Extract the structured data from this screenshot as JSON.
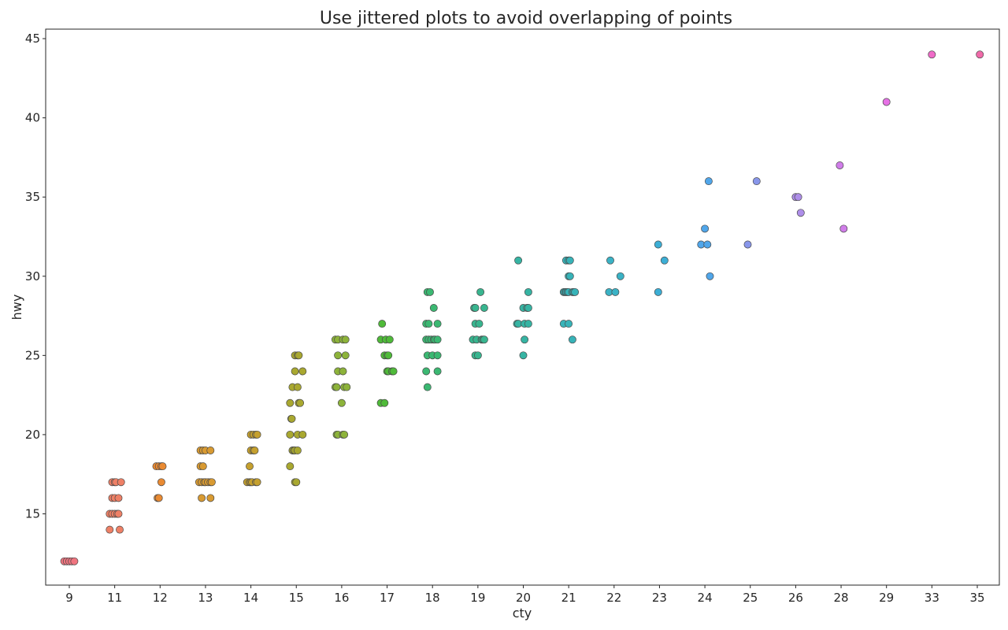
{
  "chart_data": {
    "type": "scatter",
    "title": "Use jittered plots to avoid overlapping of points",
    "xlabel": "cty",
    "ylabel": "hwy",
    "x_categories": [
      "9",
      "11",
      "12",
      "13",
      "14",
      "15",
      "16",
      "17",
      "18",
      "19",
      "20",
      "21",
      "22",
      "23",
      "24",
      "25",
      "26",
      "28",
      "29",
      "33",
      "35"
    ],
    "category_colors": {
      "9": "#f0747f",
      "11": "#ee8066",
      "12": "#e98a32",
      "13": "#d89a32",
      "14": "#c5a02e",
      "15": "#a9a830",
      "16": "#8db33a",
      "17": "#4fba39",
      "18": "#3bb872",
      "19": "#38b58f",
      "20": "#36b4a3",
      "21": "#37b3b8",
      "22": "#3ab2c5",
      "23": "#3caed5",
      "24": "#50a6ea",
      "25": "#8896ea",
      "26": "#ae8ee9",
      "28": "#d07de9",
      "29": "#e671e5",
      "33": "#ef6bc8",
      "35": "#f06aa9"
    },
    "y_ticks": [
      15,
      20,
      25,
      30,
      35,
      40,
      45
    ],
    "ylim": [
      10.5,
      45.6
    ],
    "grid": false,
    "legend": "none",
    "points": [
      {
        "x": 8.8,
        "y": 12,
        "cat": "9"
      },
      {
        "x": 8.9,
        "y": 12,
        "cat": "9"
      },
      {
        "x": 9.0,
        "y": 12,
        "cat": "9"
      },
      {
        "x": 9.1,
        "y": 12,
        "cat": "9"
      },
      {
        "x": 9.2,
        "y": 12,
        "cat": "9"
      },
      {
        "x": 10.8,
        "y": 14,
        "cat": "11"
      },
      {
        "x": 11.2,
        "y": 14,
        "cat": "11"
      },
      {
        "x": 10.8,
        "y": 15,
        "cat": "11"
      },
      {
        "x": 10.9,
        "y": 15,
        "cat": "11"
      },
      {
        "x": 11.0,
        "y": 15,
        "cat": "11"
      },
      {
        "x": 11.1,
        "y": 15,
        "cat": "11"
      },
      {
        "x": 11.15,
        "y": 15,
        "cat": "11"
      },
      {
        "x": 10.9,
        "y": 16,
        "cat": "11"
      },
      {
        "x": 11.0,
        "y": 16,
        "cat": "11"
      },
      {
        "x": 11.15,
        "y": 16,
        "cat": "11"
      },
      {
        "x": 10.9,
        "y": 17,
        "cat": "11"
      },
      {
        "x": 11.0,
        "y": 17,
        "cat": "11"
      },
      {
        "x": 11.05,
        "y": 17,
        "cat": "11"
      },
      {
        "x": 11.25,
        "y": 17,
        "cat": "11"
      },
      {
        "x": 11.9,
        "y": 16,
        "cat": "12"
      },
      {
        "x": 11.95,
        "y": 16,
        "cat": "12"
      },
      {
        "x": 12.05,
        "y": 17,
        "cat": "12"
      },
      {
        "x": 11.85,
        "y": 18,
        "cat": "12"
      },
      {
        "x": 11.95,
        "y": 18,
        "cat": "12"
      },
      {
        "x": 12.05,
        "y": 18,
        "cat": "12"
      },
      {
        "x": 12.1,
        "y": 18,
        "cat": "12"
      },
      {
        "x": 12.85,
        "y": 16,
        "cat": "13"
      },
      {
        "x": 13.2,
        "y": 16,
        "cat": "13"
      },
      {
        "x": 12.75,
        "y": 17,
        "cat": "13"
      },
      {
        "x": 12.85,
        "y": 17,
        "cat": "13"
      },
      {
        "x": 12.95,
        "y": 17,
        "cat": "13"
      },
      {
        "x": 13.0,
        "y": 17,
        "cat": "13"
      },
      {
        "x": 13.1,
        "y": 17,
        "cat": "13"
      },
      {
        "x": 13.2,
        "y": 17,
        "cat": "13"
      },
      {
        "x": 13.25,
        "y": 17,
        "cat": "13"
      },
      {
        "x": 12.8,
        "y": 18,
        "cat": "13"
      },
      {
        "x": 12.9,
        "y": 18,
        "cat": "13"
      },
      {
        "x": 12.8,
        "y": 19,
        "cat": "13"
      },
      {
        "x": 12.9,
        "y": 19,
        "cat": "13"
      },
      {
        "x": 13.0,
        "y": 19,
        "cat": "13"
      },
      {
        "x": 13.2,
        "y": 19,
        "cat": "13"
      },
      {
        "x": 13.85,
        "y": 17,
        "cat": "14"
      },
      {
        "x": 13.95,
        "y": 17,
        "cat": "14"
      },
      {
        "x": 14.0,
        "y": 17,
        "cat": "14"
      },
      {
        "x": 14.05,
        "y": 17,
        "cat": "14"
      },
      {
        "x": 14.2,
        "y": 17,
        "cat": "14"
      },
      {
        "x": 14.25,
        "y": 17,
        "cat": "14"
      },
      {
        "x": 13.95,
        "y": 18,
        "cat": "14"
      },
      {
        "x": 14.0,
        "y": 19,
        "cat": "14"
      },
      {
        "x": 14.1,
        "y": 19,
        "cat": "14"
      },
      {
        "x": 14.15,
        "y": 19,
        "cat": "14"
      },
      {
        "x": 14.0,
        "y": 20,
        "cat": "14"
      },
      {
        "x": 14.1,
        "y": 20,
        "cat": "14"
      },
      {
        "x": 14.2,
        "y": 20,
        "cat": "14"
      },
      {
        "x": 14.25,
        "y": 20,
        "cat": "14"
      },
      {
        "x": 14.95,
        "y": 17,
        "cat": "15"
      },
      {
        "x": 15.0,
        "y": 17,
        "cat": "15"
      },
      {
        "x": 14.75,
        "y": 18,
        "cat": "15"
      },
      {
        "x": 14.85,
        "y": 19,
        "cat": "15"
      },
      {
        "x": 14.9,
        "y": 19,
        "cat": "15"
      },
      {
        "x": 14.95,
        "y": 19,
        "cat": "15"
      },
      {
        "x": 15.05,
        "y": 19,
        "cat": "15"
      },
      {
        "x": 14.75,
        "y": 20,
        "cat": "15"
      },
      {
        "x": 15.05,
        "y": 20,
        "cat": "15"
      },
      {
        "x": 15.25,
        "y": 20,
        "cat": "15"
      },
      {
        "x": 14.8,
        "y": 21,
        "cat": "15"
      },
      {
        "x": 14.82,
        "y": 21,
        "cat": "15"
      },
      {
        "x": 14.75,
        "y": 22,
        "cat": "15"
      },
      {
        "x": 15.1,
        "y": 22,
        "cat": "15"
      },
      {
        "x": 15.15,
        "y": 22,
        "cat": "15"
      },
      {
        "x": 14.85,
        "y": 23,
        "cat": "15"
      },
      {
        "x": 15.05,
        "y": 23,
        "cat": "15"
      },
      {
        "x": 14.95,
        "y": 24,
        "cat": "15"
      },
      {
        "x": 15.25,
        "y": 24,
        "cat": "15"
      },
      {
        "x": 14.95,
        "y": 25,
        "cat": "15"
      },
      {
        "x": 15.05,
        "y": 25,
        "cat": "15"
      },
      {
        "x": 15.1,
        "y": 25,
        "cat": "15"
      },
      {
        "x": 15.8,
        "y": 20,
        "cat": "16"
      },
      {
        "x": 15.85,
        "y": 20,
        "cat": "16"
      },
      {
        "x": 16.05,
        "y": 20,
        "cat": "16"
      },
      {
        "x": 16.1,
        "y": 20,
        "cat": "16"
      },
      {
        "x": 16.0,
        "y": 22,
        "cat": "16"
      },
      {
        "x": 15.75,
        "y": 23,
        "cat": "16"
      },
      {
        "x": 15.8,
        "y": 23,
        "cat": "16"
      },
      {
        "x": 16.1,
        "y": 23,
        "cat": "16"
      },
      {
        "x": 16.2,
        "y": 23,
        "cat": "16"
      },
      {
        "x": 15.85,
        "y": 24,
        "cat": "16"
      },
      {
        "x": 16.05,
        "y": 24,
        "cat": "16"
      },
      {
        "x": 15.85,
        "y": 25,
        "cat": "16"
      },
      {
        "x": 16.15,
        "y": 25,
        "cat": "16"
      },
      {
        "x": 15.75,
        "y": 26,
        "cat": "16"
      },
      {
        "x": 15.85,
        "y": 26,
        "cat": "16"
      },
      {
        "x": 16.05,
        "y": 26,
        "cat": "16"
      },
      {
        "x": 16.15,
        "y": 26,
        "cat": "16"
      },
      {
        "x": 16.75,
        "y": 22,
        "cat": "17"
      },
      {
        "x": 16.9,
        "y": 22,
        "cat": "17"
      },
      {
        "x": 17.0,
        "y": 24,
        "cat": "17"
      },
      {
        "x": 17.05,
        "y": 24,
        "cat": "17"
      },
      {
        "x": 17.2,
        "y": 24,
        "cat": "17"
      },
      {
        "x": 17.25,
        "y": 24,
        "cat": "17"
      },
      {
        "x": 16.9,
        "y": 25,
        "cat": "17"
      },
      {
        "x": 17.0,
        "y": 25,
        "cat": "17"
      },
      {
        "x": 17.05,
        "y": 25,
        "cat": "17"
      },
      {
        "x": 16.75,
        "y": 26,
        "cat": "17"
      },
      {
        "x": 16.95,
        "y": 26,
        "cat": "17"
      },
      {
        "x": 17.1,
        "y": 26,
        "cat": "17"
      },
      {
        "x": 16.8,
        "y": 27,
        "cat": "17"
      },
      {
        "x": 17.8,
        "y": 23,
        "cat": "18"
      },
      {
        "x": 17.75,
        "y": 24,
        "cat": "18"
      },
      {
        "x": 18.2,
        "y": 24,
        "cat": "18"
      },
      {
        "x": 17.8,
        "y": 25,
        "cat": "18"
      },
      {
        "x": 18.0,
        "y": 25,
        "cat": "18"
      },
      {
        "x": 18.2,
        "y": 25,
        "cat": "18"
      },
      {
        "x": 17.75,
        "y": 26,
        "cat": "18"
      },
      {
        "x": 17.85,
        "y": 26,
        "cat": "18"
      },
      {
        "x": 17.95,
        "y": 26,
        "cat": "18"
      },
      {
        "x": 18.05,
        "y": 26,
        "cat": "18"
      },
      {
        "x": 18.1,
        "y": 26,
        "cat": "18"
      },
      {
        "x": 18.2,
        "y": 26,
        "cat": "18"
      },
      {
        "x": 17.75,
        "y": 27,
        "cat": "18"
      },
      {
        "x": 17.85,
        "y": 27,
        "cat": "18"
      },
      {
        "x": 18.2,
        "y": 27,
        "cat": "18"
      },
      {
        "x": 18.05,
        "y": 28,
        "cat": "18"
      },
      {
        "x": 17.8,
        "y": 29,
        "cat": "18"
      },
      {
        "x": 17.9,
        "y": 29,
        "cat": "18"
      },
      {
        "x": 18.9,
        "y": 25,
        "cat": "19"
      },
      {
        "x": 19.0,
        "y": 25,
        "cat": "19"
      },
      {
        "x": 18.8,
        "y": 26,
        "cat": "19"
      },
      {
        "x": 18.95,
        "y": 26,
        "cat": "19"
      },
      {
        "x": 19.15,
        "y": 26,
        "cat": "19"
      },
      {
        "x": 19.2,
        "y": 26,
        "cat": "19"
      },
      {
        "x": 19.25,
        "y": 26,
        "cat": "19"
      },
      {
        "x": 18.9,
        "y": 27,
        "cat": "19"
      },
      {
        "x": 19.05,
        "y": 27,
        "cat": "19"
      },
      {
        "x": 18.85,
        "y": 28,
        "cat": "19"
      },
      {
        "x": 18.9,
        "y": 28,
        "cat": "19"
      },
      {
        "x": 19.25,
        "y": 28,
        "cat": "19"
      },
      {
        "x": 19.1,
        "y": 29,
        "cat": "19"
      },
      {
        "x": 20.0,
        "y": 25,
        "cat": "20"
      },
      {
        "x": 20.05,
        "y": 26,
        "cat": "20"
      },
      {
        "x": 19.75,
        "y": 27,
        "cat": "20"
      },
      {
        "x": 19.8,
        "y": 27,
        "cat": "20"
      },
      {
        "x": 20.05,
        "y": 27,
        "cat": "20"
      },
      {
        "x": 20.2,
        "y": 27,
        "cat": "20"
      },
      {
        "x": 20.0,
        "y": 28,
        "cat": "20"
      },
      {
        "x": 20.15,
        "y": 28,
        "cat": "20"
      },
      {
        "x": 20.2,
        "y": 28,
        "cat": "20"
      },
      {
        "x": 20.2,
        "y": 29,
        "cat": "20"
      },
      {
        "x": 19.8,
        "y": 31,
        "cat": "20"
      },
      {
        "x": 21.15,
        "y": 26,
        "cat": "21"
      },
      {
        "x": 20.8,
        "y": 27,
        "cat": "21"
      },
      {
        "x": 21.0,
        "y": 27,
        "cat": "21"
      },
      {
        "x": 20.8,
        "y": 29,
        "cat": "21"
      },
      {
        "x": 20.85,
        "y": 29,
        "cat": "21"
      },
      {
        "x": 20.9,
        "y": 29,
        "cat": "21"
      },
      {
        "x": 20.95,
        "y": 29,
        "cat": "21"
      },
      {
        "x": 21.0,
        "y": 29,
        "cat": "21"
      },
      {
        "x": 21.15,
        "y": 29,
        "cat": "21"
      },
      {
        "x": 21.2,
        "y": 29,
        "cat": "21"
      },
      {
        "x": 21.25,
        "y": 29,
        "cat": "21"
      },
      {
        "x": 21.0,
        "y": 30,
        "cat": "21"
      },
      {
        "x": 21.05,
        "y": 30,
        "cat": "21"
      },
      {
        "x": 20.9,
        "y": 31,
        "cat": "21"
      },
      {
        "x": 21.0,
        "y": 31,
        "cat": "21"
      },
      {
        "x": 21.05,
        "y": 31,
        "cat": "21"
      },
      {
        "x": 21.8,
        "y": 29,
        "cat": "22"
      },
      {
        "x": 22.05,
        "y": 29,
        "cat": "22"
      },
      {
        "x": 22.25,
        "y": 30,
        "cat": "22"
      },
      {
        "x": 21.85,
        "y": 31,
        "cat": "22"
      },
      {
        "x": 22.95,
        "y": 29,
        "cat": "23"
      },
      {
        "x": 23.2,
        "y": 31,
        "cat": "23"
      },
      {
        "x": 22.95,
        "y": 32,
        "cat": "23"
      },
      {
        "x": 24.2,
        "y": 30,
        "cat": "24"
      },
      {
        "x": 23.85,
        "y": 32,
        "cat": "24"
      },
      {
        "x": 24.1,
        "y": 32,
        "cat": "24"
      },
      {
        "x": 24.0,
        "y": 33,
        "cat": "24"
      },
      {
        "x": 24.15,
        "y": 36,
        "cat": "24"
      },
      {
        "x": 24.9,
        "y": 32,
        "cat": "25"
      },
      {
        "x": 25.25,
        "y": 36,
        "cat": "25"
      },
      {
        "x": 26.2,
        "y": 34,
        "cat": "26"
      },
      {
        "x": 26.0,
        "y": 35,
        "cat": "26"
      },
      {
        "x": 26.1,
        "y": 35,
        "cat": "26"
      },
      {
        "x": 28.1,
        "y": 33,
        "cat": "28"
      },
      {
        "x": 27.95,
        "y": 37,
        "cat": "28"
      },
      {
        "x": 29.0,
        "y": 41,
        "cat": "29"
      },
      {
        "x": 33.0,
        "y": 44,
        "cat": "33"
      },
      {
        "x": 35.1,
        "y": 44,
        "cat": "35"
      }
    ]
  }
}
